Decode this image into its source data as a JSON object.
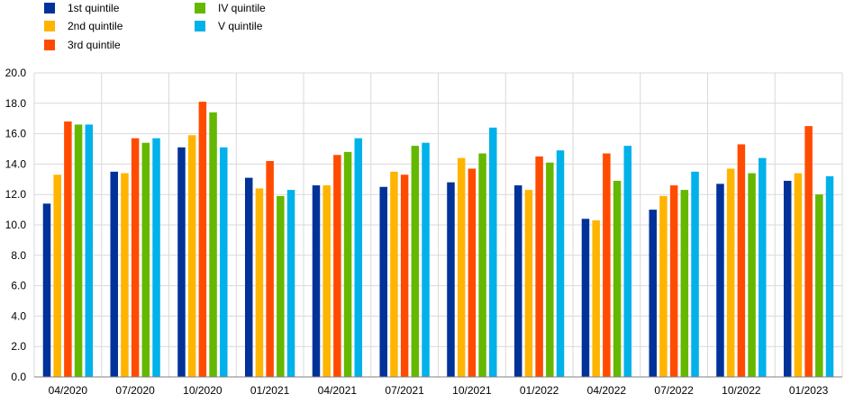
{
  "chart_data": {
    "type": "bar",
    "title": "",
    "xlabel": "",
    "ylabel": "",
    "ylim": [
      0,
      20
    ],
    "yticks": [
      "0.0",
      "2.0",
      "4.0",
      "6.0",
      "8.0",
      "10.0",
      "12.0",
      "14.0",
      "16.0",
      "18.0",
      "20.0"
    ],
    "grid": true,
    "legend_position": "top-left",
    "categories": [
      "04/2020",
      "07/2020",
      "10/2020",
      "01/2021",
      "04/2021",
      "07/2021",
      "10/2021",
      "01/2022",
      "04/2022",
      "07/2022",
      "10/2022",
      "01/2023"
    ],
    "series": [
      {
        "name": "1st quintile",
        "color": "#003299",
        "values": [
          11.4,
          13.5,
          15.1,
          13.1,
          12.6,
          12.5,
          12.8,
          12.6,
          10.4,
          11.0,
          12.7,
          12.9
        ]
      },
      {
        "name": "2nd quintile",
        "color": "#FFB400",
        "values": [
          13.3,
          13.4,
          15.9,
          12.4,
          12.6,
          13.5,
          14.4,
          12.3,
          10.3,
          11.9,
          13.7,
          13.4
        ]
      },
      {
        "name": "3rd quintile",
        "color": "#FF4B00",
        "values": [
          16.8,
          15.7,
          18.1,
          14.2,
          14.6,
          13.3,
          13.7,
          14.5,
          14.7,
          12.6,
          15.3,
          16.5
        ]
      },
      {
        "name": "IV quintile",
        "color": "#65B800",
        "values": [
          16.6,
          15.4,
          17.4,
          11.9,
          14.8,
          15.2,
          14.7,
          14.1,
          12.9,
          12.3,
          13.4,
          12.0
        ]
      },
      {
        "name": "V quintile",
        "color": "#00B1EA",
        "values": [
          16.6,
          15.7,
          15.1,
          12.3,
          15.7,
          15.4,
          16.4,
          14.9,
          15.2,
          13.5,
          14.4,
          13.2
        ]
      }
    ]
  }
}
